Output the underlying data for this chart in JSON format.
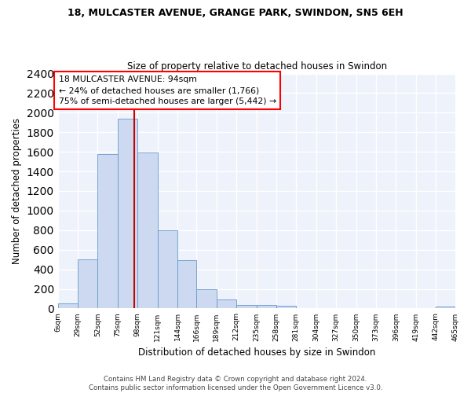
{
  "title1": "18, MULCASTER AVENUE, GRANGE PARK, SWINDON, SN5 6EH",
  "title2": "Size of property relative to detached houses in Swindon",
  "xlabel": "Distribution of detached houses by size in Swindon",
  "ylabel": "Number of detached properties",
  "annotation_line1": "18 MULCASTER AVENUE: 94sqm",
  "annotation_line2": "← 24% of detached houses are smaller (1,766)",
  "annotation_line3": "75% of semi-detached houses are larger (5,442) →",
  "bar_color": "#ccd9f0",
  "bar_edge_color": "#6699cc",
  "vline_color": "#cc0000",
  "vline_x": 94,
  "footer1": "Contains HM Land Registry data © Crown copyright and database right 2024.",
  "footer2": "Contains public sector information licensed under the Open Government Licence v3.0.",
  "bins": [
    6,
    29,
    52,
    75,
    98,
    121,
    144,
    166,
    189,
    212,
    235,
    258,
    281,
    304,
    327,
    350,
    373,
    396,
    419,
    442,
    465
  ],
  "counts": [
    50,
    500,
    1580,
    1940,
    1590,
    800,
    490,
    195,
    88,
    35,
    35,
    25,
    0,
    0,
    0,
    0,
    0,
    0,
    0,
    22
  ],
  "ylim": [
    0,
    2400
  ],
  "yticks": [
    0,
    200,
    400,
    600,
    800,
    1000,
    1200,
    1400,
    1600,
    1800,
    2000,
    2200,
    2400
  ],
  "tick_labels": [
    "6sqm",
    "29sqm",
    "52sqm",
    "75sqm",
    "98sqm",
    "121sqm",
    "144sqm",
    "166sqm",
    "189sqm",
    "212sqm",
    "235sqm",
    "258sqm",
    "281sqm",
    "304sqm",
    "327sqm",
    "350sqm",
    "373sqm",
    "396sqm",
    "419sqm",
    "442sqm",
    "465sqm"
  ],
  "background_color": "#eef2fb"
}
